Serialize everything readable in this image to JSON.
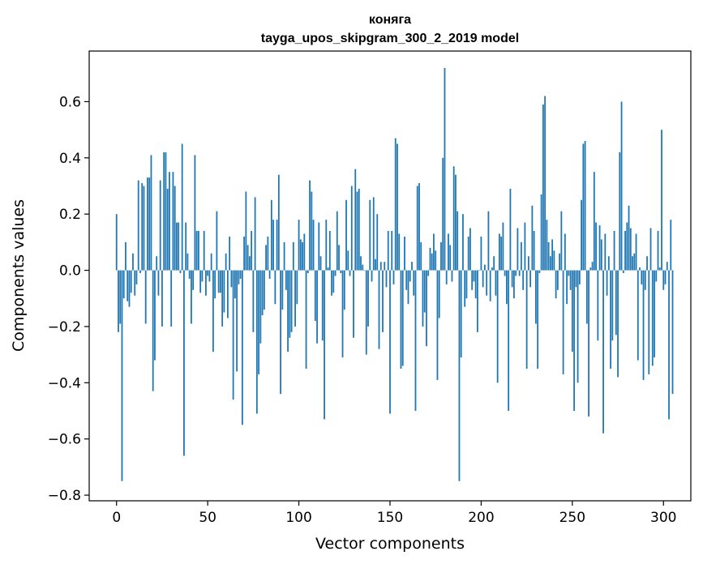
{
  "chart_data": {
    "type": "bar",
    "title_line1": "коняга",
    "title_line2": "tayga_upos_skipgram_300_2_2019 model",
    "xlabel": "Vector components",
    "ylabel": "Components values",
    "xlim": [
      -15,
      315
    ],
    "ylim": [
      -0.82,
      0.78
    ],
    "x_ticks": [
      0,
      50,
      100,
      150,
      200,
      250,
      300
    ],
    "x_tick_labels": [
      "0",
      "50",
      "100",
      "150",
      "200",
      "250",
      "300"
    ],
    "y_ticks": [
      -0.8,
      -0.6,
      -0.4,
      -0.2,
      0.0,
      0.2,
      0.4,
      0.6
    ],
    "y_tick_labels": [
      "−0.8",
      "−0.6",
      "−0.4",
      "−0.2",
      "0.0",
      "0.2",
      "0.4",
      "0.6"
    ],
    "bar_color": "#1f77b4",
    "values": [
      0.2,
      -0.22,
      -0.19,
      -0.75,
      -0.1,
      0.1,
      -0.11,
      -0.13,
      -0.08,
      0.06,
      -0.09,
      -0.05,
      0.32,
      -0.01,
      0.31,
      0.3,
      -0.19,
      0.33,
      0.33,
      0.41,
      -0.43,
      -0.32,
      0.05,
      -0.09,
      0.32,
      -0.2,
      0.42,
      0.42,
      0.29,
      0.35,
      -0.2,
      0.35,
      0.3,
      0.17,
      0.17,
      -0.01,
      0.45,
      -0.66,
      0.17,
      0.06,
      -0.03,
      -0.19,
      -0.07,
      0.41,
      0.14,
      0.14,
      -0.08,
      -0.04,
      0.14,
      -0.09,
      -0.02,
      -0.04,
      0.06,
      -0.29,
      -0.1,
      0.21,
      -0.08,
      -0.08,
      -0.2,
      -0.15,
      0.06,
      -0.17,
      0.12,
      -0.06,
      -0.46,
      -0.1,
      -0.36,
      -0.05,
      -0.03,
      -0.55,
      0.12,
      0.28,
      0.09,
      0.05,
      0.14,
      -0.22,
      0.26,
      -0.51,
      -0.37,
      -0.26,
      -0.16,
      -0.14,
      0.09,
      0.12,
      -0.03,
      0.25,
      0.18,
      -0.12,
      0.18,
      0.34,
      -0.44,
      -0.14,
      0.1,
      -0.07,
      -0.29,
      -0.24,
      -0.22,
      0.1,
      -0.2,
      -0.12,
      0.18,
      0.11,
      0.1,
      0.13,
      -0.35,
      -0.01,
      0.32,
      0.28,
      0.18,
      -0.18,
      -0.26,
      0.17,
      0.05,
      -0.25,
      -0.53,
      0.18,
      0.01,
      0.14,
      -0.09,
      -0.08,
      -0.02,
      0.21,
      0.09,
      -0.01,
      -0.31,
      -0.14,
      0.25,
      0.07,
      -0.02,
      0.3,
      -0.24,
      0.36,
      0.28,
      0.29,
      0.05,
      0.02,
      0.0,
      -0.3,
      -0.2,
      0.25,
      -0.04,
      0.26,
      0.04,
      0.2,
      -0.28,
      0.03,
      -0.22,
      0.03,
      -0.06,
      0.14,
      -0.51,
      0.14,
      -0.05,
      0.47,
      0.45,
      0.13,
      -0.35,
      -0.34,
      0.12,
      -0.07,
      -0.12,
      -0.04,
      0.03,
      -0.09,
      -0.5,
      0.3,
      0.31,
      0.1,
      -0.2,
      -0.15,
      -0.27,
      -0.02,
      0.08,
      0.06,
      0.13,
      0.07,
      -0.39,
      -0.17,
      0.1,
      0.4,
      0.72,
      -0.05,
      0.13,
      0.09,
      -0.04,
      0.37,
      0.34,
      0.21,
      -0.75,
      -0.31,
      0.2,
      -0.13,
      -0.1,
      0.12,
      0.15,
      -0.07,
      -0.04,
      -0.1,
      -0.22,
      0.0,
      0.12,
      -0.06,
      0.02,
      -0.09,
      0.21,
      -0.11,
      0.01,
      0.05,
      -0.09,
      -0.4,
      0.13,
      0.12,
      0.17,
      -0.02,
      -0.12,
      -0.5,
      0.29,
      -0.06,
      -0.1,
      -0.02,
      0.15,
      -0.02,
      0.1,
      -0.07,
      0.17,
      -0.35,
      0.05,
      -0.06,
      0.23,
      0.14,
      -0.19,
      -0.35,
      -0.01,
      0.27,
      0.59,
      0.62,
      0.18,
      0.1,
      0.05,
      0.11,
      0.07,
      -0.1,
      -0.07,
      0.06,
      0.21,
      -0.37,
      0.13,
      -0.12,
      -0.02,
      -0.07,
      -0.29,
      -0.5,
      -0.06,
      -0.4,
      -0.05,
      0.25,
      0.45,
      0.46,
      -0.19,
      -0.52,
      0.01,
      0.03,
      0.35,
      0.17,
      -0.25,
      0.16,
      0.11,
      -0.58,
      0.13,
      -0.09,
      0.05,
      -0.35,
      -0.25,
      0.14,
      -0.23,
      -0.38,
      0.42,
      0.6,
      -0.01,
      0.14,
      0.17,
      0.23,
      0.15,
      0.05,
      0.06,
      0.13,
      -0.32,
      0.01,
      -0.05,
      -0.39,
      -0.07,
      0.05,
      -0.37,
      0.15,
      -0.34,
      -0.31,
      -0.04,
      0.14,
      0.01,
      0.5,
      -0.07,
      -0.05,
      0.03,
      -0.53,
      0.18,
      -0.44
    ]
  }
}
